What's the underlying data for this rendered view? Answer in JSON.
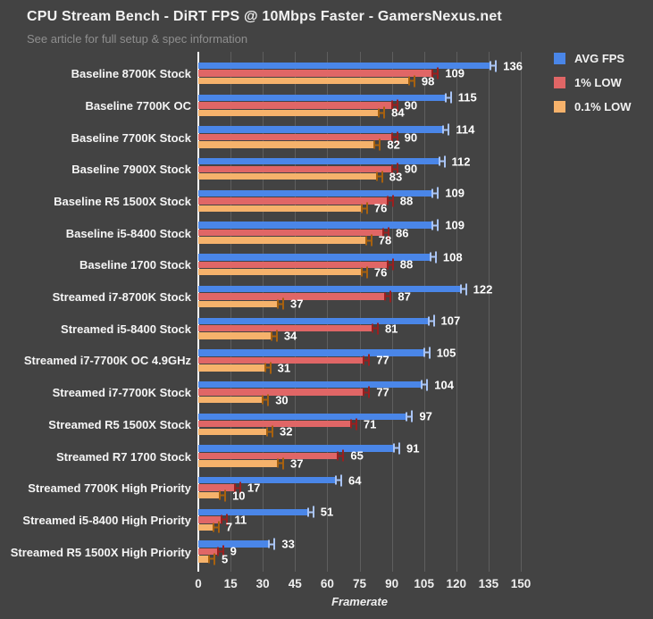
{
  "header": {
    "title": "CPU Stream Bench - DiRT FPS @ 10Mbps Faster  - GamersNexus.net",
    "subtitle": "See article for full setup & spec information"
  },
  "colors": {
    "background": "#434343",
    "gridline": "#5e5e5e",
    "axis_line": "#ffffff",
    "text": "#f2f2f2",
    "subtitle_text": "#8f8f8f"
  },
  "chart_data": {
    "type": "bar",
    "orientation": "horizontal",
    "title": "CPU Stream Bench - DiRT FPS @ 10Mbps Faster  - GamersNexus.net",
    "subtitle": "See article for full setup & spec information",
    "xlabel": "Framerate",
    "xlim": [
      0,
      150
    ],
    "xticks": [
      0,
      15,
      30,
      45,
      60,
      75,
      90,
      105,
      120,
      135,
      150
    ],
    "grid": true,
    "legend_position": "top-right",
    "error_bars": true,
    "categories": [
      "Baseline 8700K Stock",
      "Baseline 7700K OC",
      "Baseline 7700K Stock",
      "Baseline 7900X Stock",
      "Baseline R5 1500X Stock",
      "Baseline i5-8400 Stock",
      "Baseline 1700 Stock",
      "Streamed i7-8700K Stock",
      "Streamed i5-8400 Stock",
      "Streamed i7-7700K OC 4.9GHz",
      "Streamed i7-7700K Stock",
      "Streamed R5 1500X Stock",
      "Streamed R7 1700 Stock",
      "Streamed 7700K High Priority",
      "Streamed i5-8400 High Priority",
      "Streamed R5 1500X High Priority"
    ],
    "series": [
      {
        "name": "AVG FPS",
        "color": "#4a86e8",
        "whisker_color": "#a9c4f5",
        "values": [
          136,
          115,
          114,
          112,
          109,
          109,
          108,
          122,
          107,
          105,
          104,
          97,
          91,
          64,
          51,
          33
        ]
      },
      {
        "name": "1% LOW",
        "color": "#e06666",
        "whisker_color": "#9a1f1f",
        "values": [
          109,
          90,
          90,
          90,
          88,
          86,
          88,
          87,
          81,
          77,
          77,
          71,
          65,
          17,
          11,
          9
        ]
      },
      {
        "name": "0.1% LOW",
        "color": "#f6b26b",
        "whisker_color": "#a8610e",
        "values": [
          98,
          84,
          82,
          83,
          76,
          78,
          76,
          37,
          34,
          31,
          30,
          32,
          37,
          10,
          7,
          5
        ]
      }
    ]
  }
}
